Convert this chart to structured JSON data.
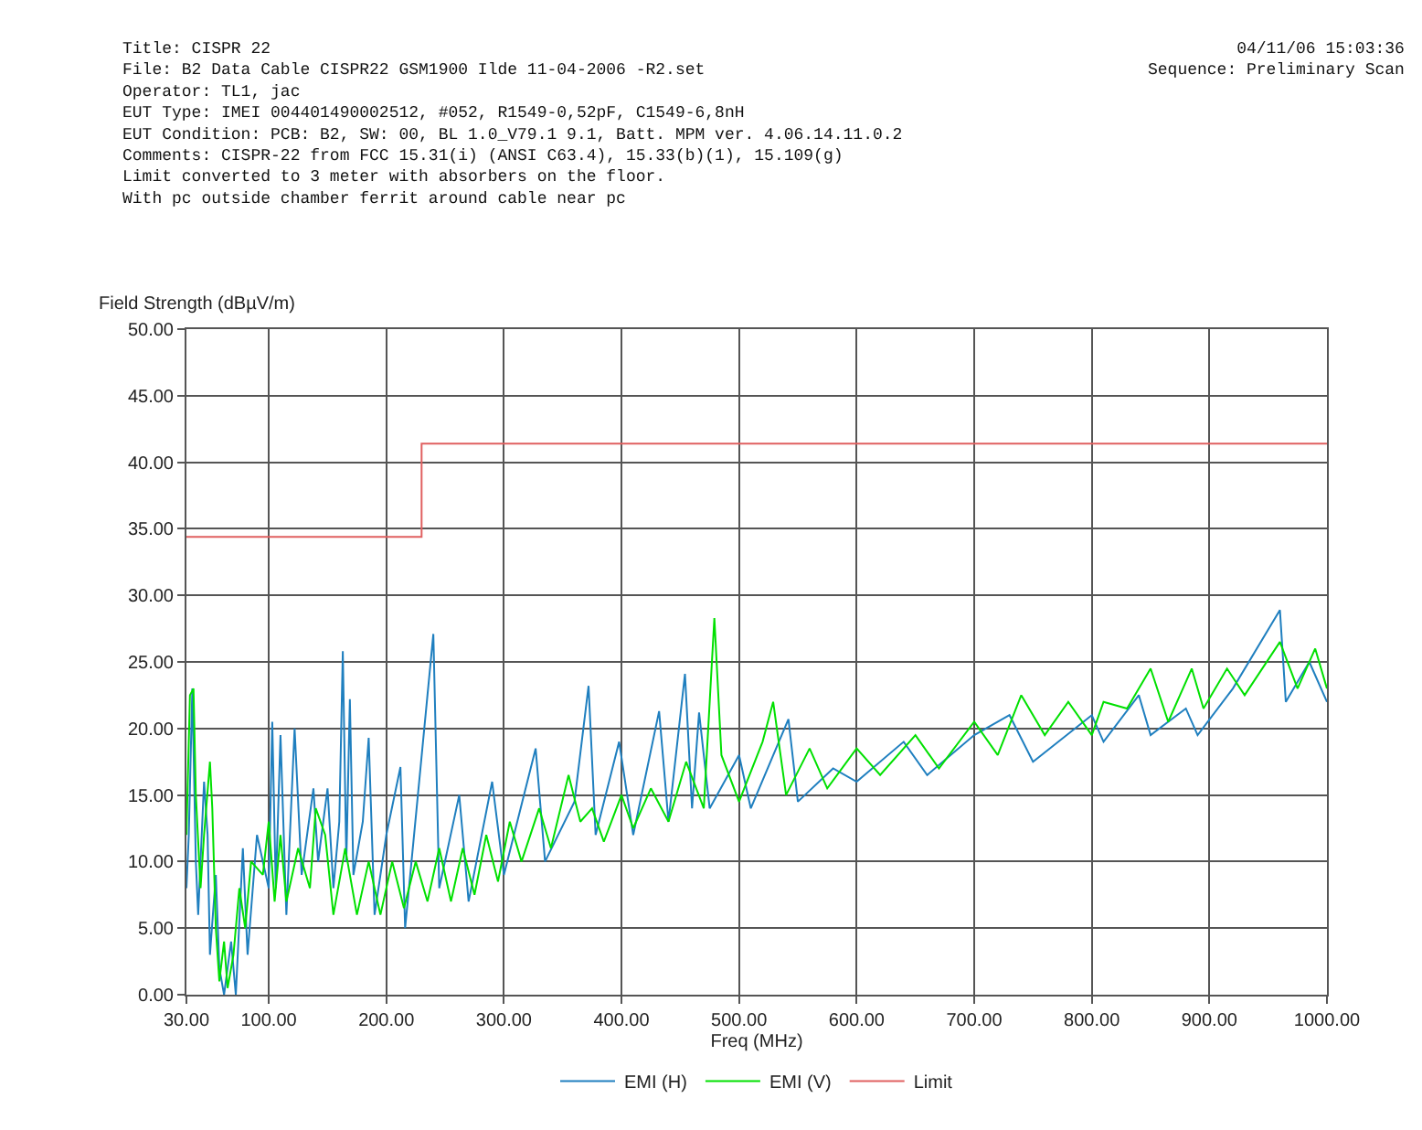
{
  "chart_data": {
    "type": "line",
    "annotations": [
      "Title: CISPR 22\nFile: B2 Data Cable CISPR22 GSM1900 Ilde 11-04-2006 -R2.set\nOperator: TL1, jac\nEUT Type: IMEI 004401490002512, #052, R1549-0,52pF, C1549-6,8nH\nEUT Condition: PCB: B2, SW: 00, BL 1.0_V79.1 9.1, Batt. MPM ver. 4.06.14.11.0.2\nComments: CISPR-22 from FCC 15.31(i) (ANSI C63.4), 15.33(b)(1), 15.109(g)\nLimit converted to 3 meter with absorbers on the floor.\nWith pc outside chamber ferrit around cable near pc",
      "04/11/06 15:03:36\nSequence: Preliminary Scan"
    ],
    "xlabel": "Freq (MHz)",
    "ylabel": "Field Strength (dBµV/m)",
    "xlim": [
      30,
      1000
    ],
    "ylim": [
      0,
      50
    ],
    "xticks": [
      {
        "value": 30,
        "label": "30.00"
      },
      {
        "value": 100,
        "label": "100.00"
      },
      {
        "value": 200,
        "label": "200.00"
      },
      {
        "value": 300,
        "label": "300.00"
      },
      {
        "value": 400,
        "label": "400.00"
      },
      {
        "value": 500,
        "label": "500.00"
      },
      {
        "value": 600,
        "label": "600.00"
      },
      {
        "value": 700,
        "label": "700.00"
      },
      {
        "value": 800,
        "label": "800.00"
      },
      {
        "value": 900,
        "label": "900.00"
      },
      {
        "value": 1000,
        "label": "1000.00"
      }
    ],
    "yticks": [
      {
        "value": 0,
        "label": "0.00"
      },
      {
        "value": 5,
        "label": "5.00"
      },
      {
        "value": 10,
        "label": "10.00"
      },
      {
        "value": 15,
        "label": "15.00"
      },
      {
        "value": 20,
        "label": "20.00"
      },
      {
        "value": 25,
        "label": "25.00"
      },
      {
        "value": 30,
        "label": "30.00"
      },
      {
        "value": 35,
        "label": "35.00"
      },
      {
        "value": 40,
        "label": "40.00"
      },
      {
        "value": 45,
        "label": "45.00"
      },
      {
        "value": 50,
        "label": "50.00"
      }
    ],
    "grid": true,
    "legend": "bottom",
    "marker": "none",
    "line_style": "solid",
    "series": [
      {
        "name": "EMI (H)",
        "color": "#1f7fbf",
        "x": [
          30,
          32,
          35,
          38,
          40,
          45,
          48,
          50,
          55,
          58,
          62,
          68,
          72,
          78,
          82,
          90,
          100,
          103,
          106,
          110,
          115,
          122,
          128,
          138,
          142,
          150,
          155,
          160,
          163,
          166,
          169,
          172,
          180,
          185,
          190,
          200,
          212,
          216,
          240,
          245,
          262,
          270,
          290,
          300,
          327,
          335,
          360,
          372,
          378,
          398,
          410,
          432,
          440,
          454,
          460,
          466,
          475,
          500,
          510,
          542,
          550,
          580,
          600,
          640,
          660,
          700,
          730,
          750,
          800,
          810,
          840,
          850,
          880,
          890,
          920,
          960,
          965,
          985,
          1000
        ],
        "values": [
          8,
          12,
          23,
          10,
          6,
          16,
          12,
          3,
          9,
          2,
          0,
          4,
          0,
          11,
          3,
          12,
          8,
          20.5,
          8,
          19.5,
          6,
          20,
          9,
          15.5,
          10,
          15.5,
          8,
          13,
          25.8,
          10,
          22.2,
          9,
          13,
          19.3,
          6,
          12,
          17.1,
          5,
          27.1,
          8,
          15,
          7,
          16,
          9,
          18.5,
          10,
          14.5,
          23.2,
          12,
          19,
          12,
          21.3,
          13,
          24.1,
          14,
          21.2,
          14,
          18,
          14,
          20.7,
          14.5,
          17,
          16,
          19,
          16.5,
          19.5,
          21,
          17.5,
          21,
          19,
          22.5,
          19.5,
          21.5,
          19.5,
          23,
          28.9,
          22,
          25,
          22
        ]
      },
      {
        "name": "EMI (V)",
        "color": "#00e000",
        "x": [
          30,
          33,
          36,
          38,
          42,
          45,
          50,
          52,
          55,
          58,
          62,
          65,
          70,
          75,
          80,
          85,
          95,
          100,
          105,
          110,
          115,
          125,
          135,
          140,
          148,
          155,
          165,
          175,
          185,
          195,
          205,
          215,
          225,
          235,
          245,
          255,
          265,
          275,
          285,
          295,
          305,
          315,
          330,
          340,
          355,
          365,
          375,
          385,
          400,
          410,
          425,
          440,
          455,
          470,
          479,
          485,
          500,
          520,
          529,
          540,
          560,
          575,
          600,
          620,
          650,
          670,
          700,
          720,
          740,
          760,
          780,
          800,
          810,
          830,
          850,
          865,
          885,
          895,
          915,
          930,
          960,
          975,
          990,
          1000
        ],
        "values": [
          12,
          22.5,
          23,
          15,
          8,
          12,
          17.5,
          14,
          5,
          1,
          4,
          0.5,
          3,
          8,
          5,
          10,
          9,
          13,
          7,
          12,
          7,
          11,
          8,
          14,
          12,
          6,
          11,
          6,
          10,
          6,
          10,
          6.5,
          10,
          7,
          11,
          7,
          11,
          7.5,
          12,
          8.5,
          13,
          10,
          14,
          11,
          16.5,
          13,
          14,
          11.5,
          15,
          12.5,
          15.5,
          13,
          17.5,
          14,
          28.3,
          18,
          14.5,
          19,
          22,
          15,
          18.5,
          15.5,
          18.5,
          16.5,
          19.5,
          17,
          20.5,
          18,
          22.5,
          19.5,
          22,
          19.5,
          22,
          21.5,
          24.5,
          20.5,
          24.5,
          21.5,
          24.5,
          22.5,
          26.5,
          23,
          26,
          23
        ]
      },
      {
        "name": "Limit",
        "type": "step",
        "color": "#e06060",
        "x": [
          30,
          230,
          1000
        ],
        "values": [
          34.4,
          41.4,
          41.4
        ]
      }
    ]
  }
}
